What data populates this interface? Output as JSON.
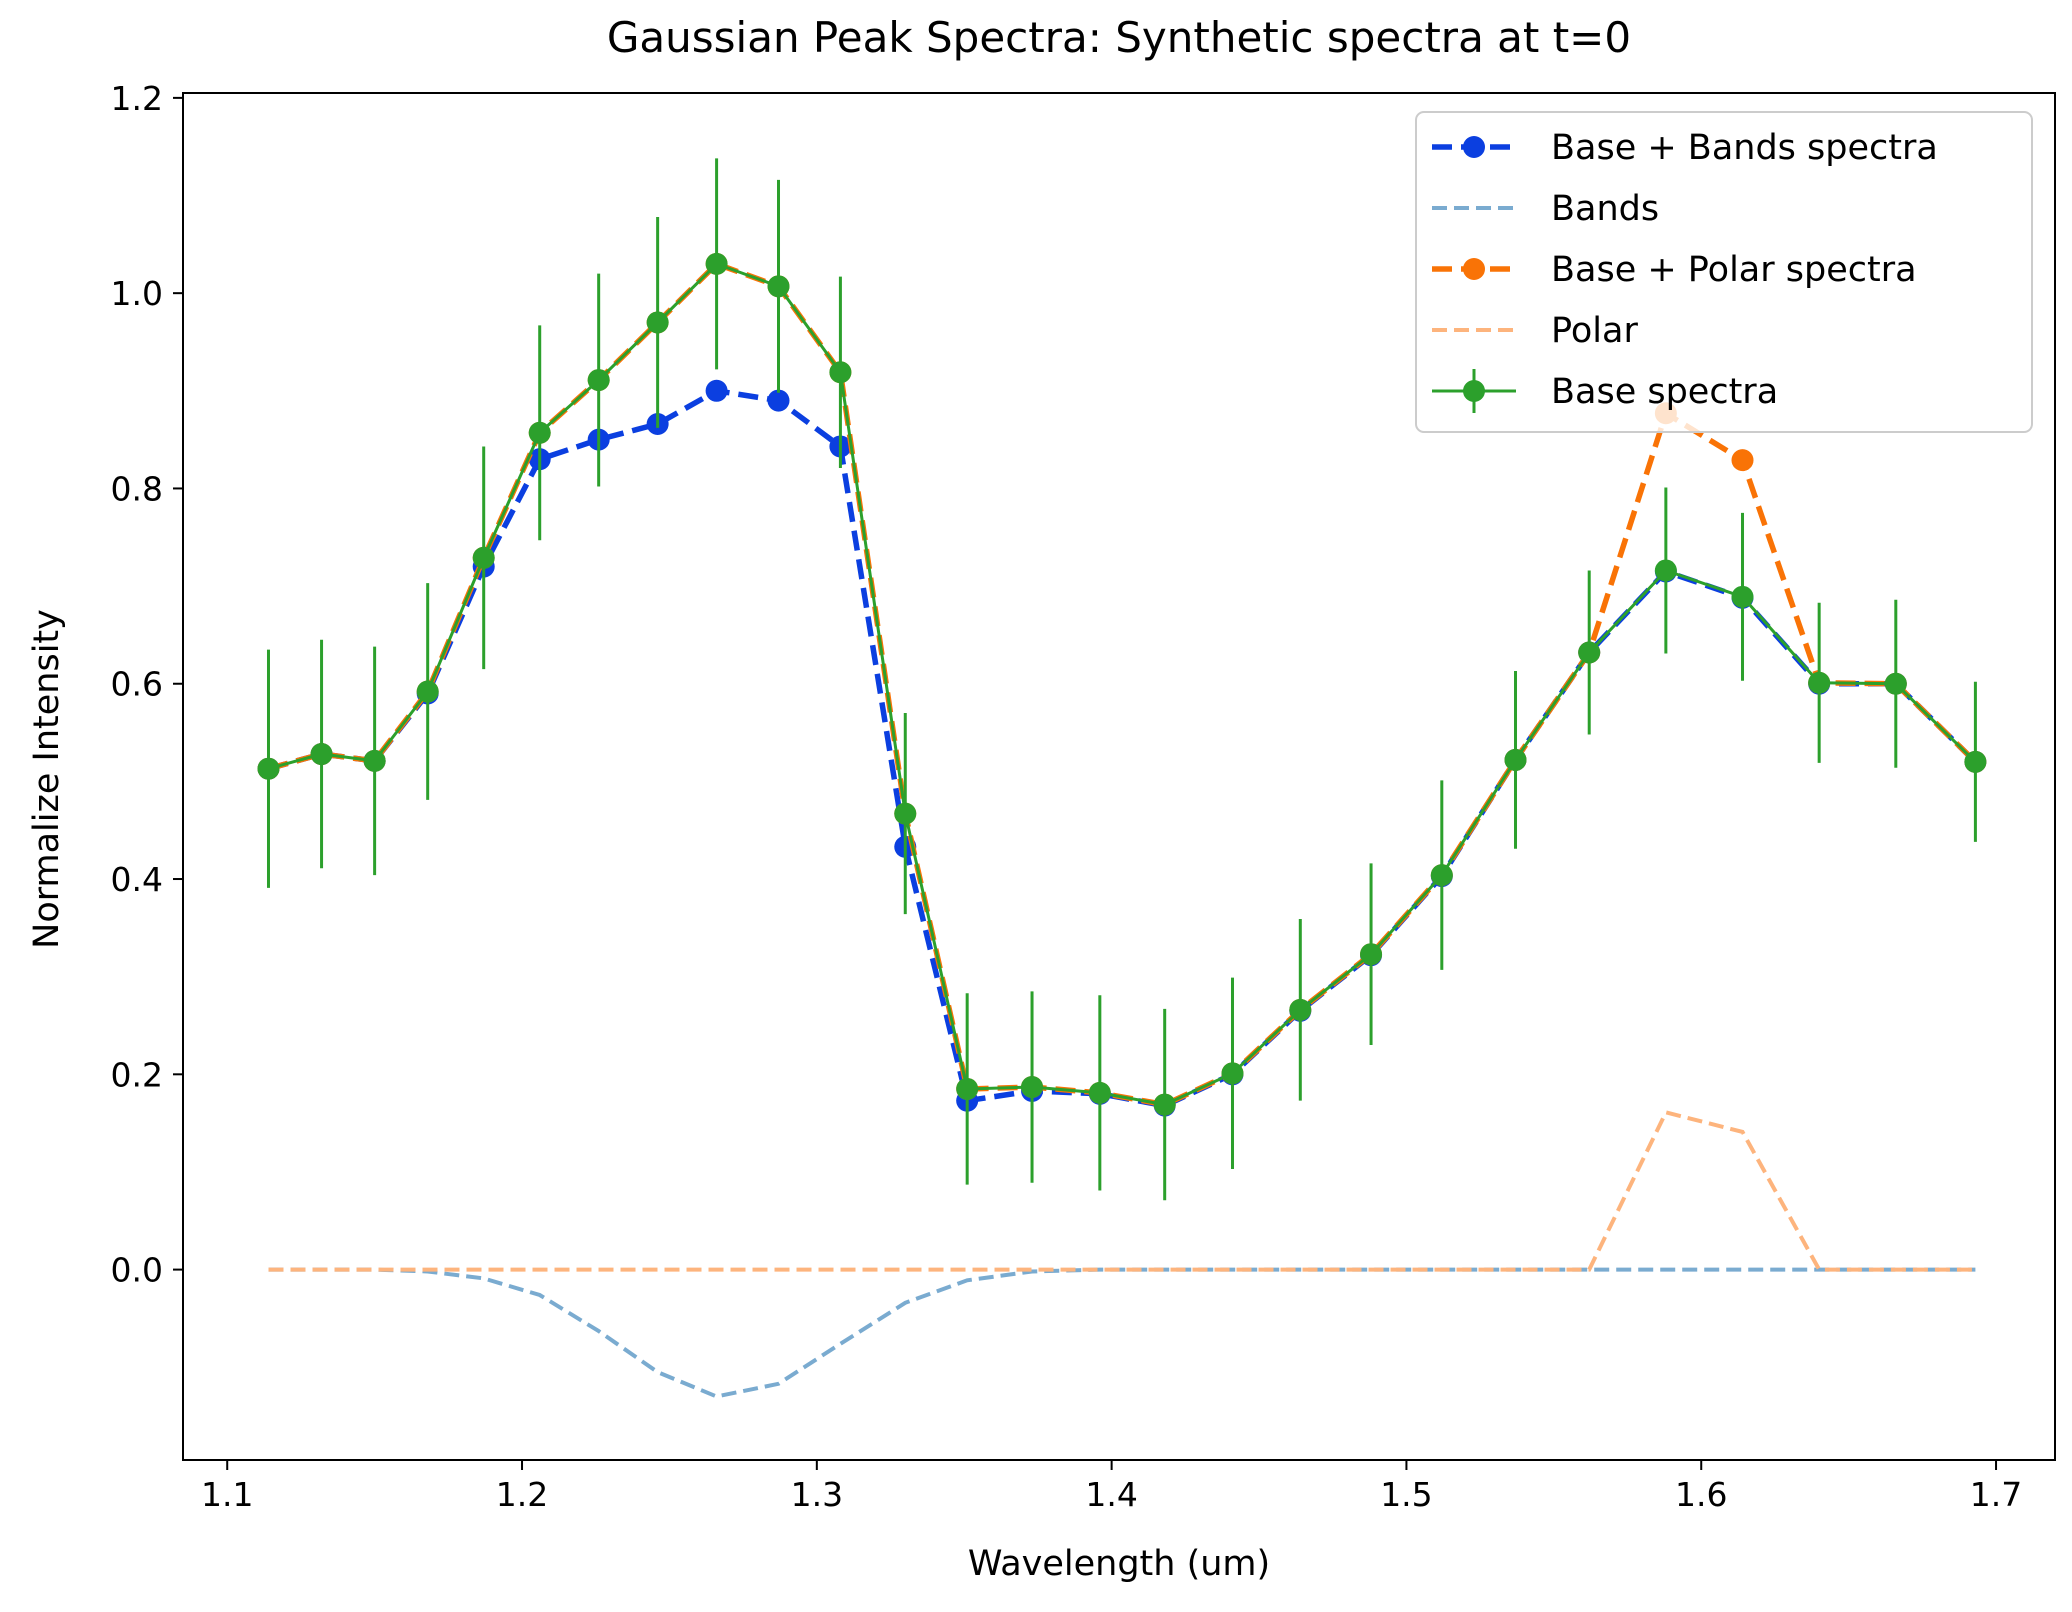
{
  "chart_data": {
    "type": "line",
    "title": "Gaussian Peak Spectra: Synthetic spectra at t=0",
    "xlabel": "Wavelength (um)",
    "ylabel": "Normalize Intensity",
    "xlim": [
      1.085,
      1.72
    ],
    "ylim": [
      -0.195,
      1.205
    ],
    "xticks": [
      1.1,
      1.2,
      1.3,
      1.4,
      1.5,
      1.6,
      1.7
    ],
    "xtick_labels": [
      "1.1",
      "1.2",
      "1.3",
      "1.4",
      "1.5",
      "1.6",
      "1.7"
    ],
    "yticks": [
      0.0,
      0.2,
      0.4,
      0.6,
      0.8,
      1.0,
      1.2
    ],
    "ytick_labels": [
      "0.0",
      "0.2",
      "0.4",
      "0.6",
      "0.8",
      "1.0",
      "1.2"
    ],
    "grid": false,
    "legend_position": "top-right",
    "x": [
      1.114,
      1.132,
      1.15,
      1.168,
      1.187,
      1.206,
      1.226,
      1.246,
      1.266,
      1.287,
      1.308,
      1.33,
      1.351,
      1.373,
      1.396,
      1.418,
      1.441,
      1.464,
      1.488,
      1.512,
      1.537,
      1.562,
      1.588,
      1.614,
      1.64,
      1.666,
      1.693
    ],
    "series": [
      {
        "name": "Base + Bands spectra",
        "color": "#0b3fe0",
        "style": "dashed-markers",
        "values": [
          0.513,
          0.528,
          0.521,
          0.59,
          0.72,
          0.83,
          0.85,
          0.866,
          0.9,
          0.89,
          0.843,
          0.433,
          0.173,
          0.183,
          0.18,
          0.168,
          0.2,
          0.265,
          0.322,
          0.403,
          0.522,
          0.632,
          0.715,
          0.688,
          0.6,
          0.6,
          0.52
        ]
      },
      {
        "name": "Bands",
        "color": "#7aabd0",
        "style": "dashed",
        "values": [
          0.0,
          0.0,
          0.0,
          -0.002,
          -0.009,
          -0.026,
          -0.063,
          -0.105,
          -0.13,
          -0.117,
          -0.076,
          -0.034,
          -0.011,
          -0.002,
          0.0,
          0.0,
          0.0,
          0.0,
          0.0,
          0.0,
          0.0,
          0.0,
          0.0,
          0.0,
          0.0,
          0.0,
          0.0
        ]
      },
      {
        "name": "Base + Polar spectra",
        "color": "#f97306",
        "style": "dashed-markers",
        "values": [
          0.513,
          0.528,
          0.521,
          0.592,
          0.729,
          0.857,
          0.911,
          0.97,
          1.03,
          1.007,
          0.919,
          0.467,
          0.185,
          0.187,
          0.181,
          0.169,
          0.201,
          0.266,
          0.323,
          0.404,
          0.522,
          0.632,
          0.877,
          0.829,
          0.601,
          0.6,
          0.52
        ]
      },
      {
        "name": "Polar",
        "color": "#fdb47d",
        "style": "dashed",
        "values": [
          0.0,
          0.0,
          0.0,
          0.0,
          0.0,
          0.0,
          0.0,
          0.0,
          0.0,
          0.0,
          0.0,
          0.0,
          0.0,
          0.0,
          0.0,
          0.0,
          0.0,
          0.0,
          0.0,
          0.0,
          0.0,
          0.0,
          0.161,
          0.141,
          0.0,
          0.0,
          0.0
        ]
      },
      {
        "name": "Base spectra",
        "color": "#2ca02c",
        "style": "solid-markers-errorbars",
        "values": [
          0.513,
          0.528,
          0.521,
          0.592,
          0.729,
          0.857,
          0.911,
          0.97,
          1.03,
          1.007,
          0.919,
          0.467,
          0.185,
          0.187,
          0.181,
          0.169,
          0.201,
          0.266,
          0.323,
          0.404,
          0.522,
          0.632,
          0.716,
          0.689,
          0.601,
          0.6,
          0.52
        ],
        "errors": [
          0.122,
          0.117,
          0.117,
          0.111,
          0.114,
          0.11,
          0.109,
          0.108,
          0.108,
          0.109,
          0.098,
          0.103,
          0.098,
          0.098,
          0.1,
          0.098,
          0.098,
          0.093,
          0.093,
          0.097,
          0.091,
          0.084,
          0.085,
          0.086,
          0.082,
          0.086,
          0.082
        ]
      }
    ],
    "legend_order": [
      0,
      1,
      2,
      3,
      4
    ]
  }
}
